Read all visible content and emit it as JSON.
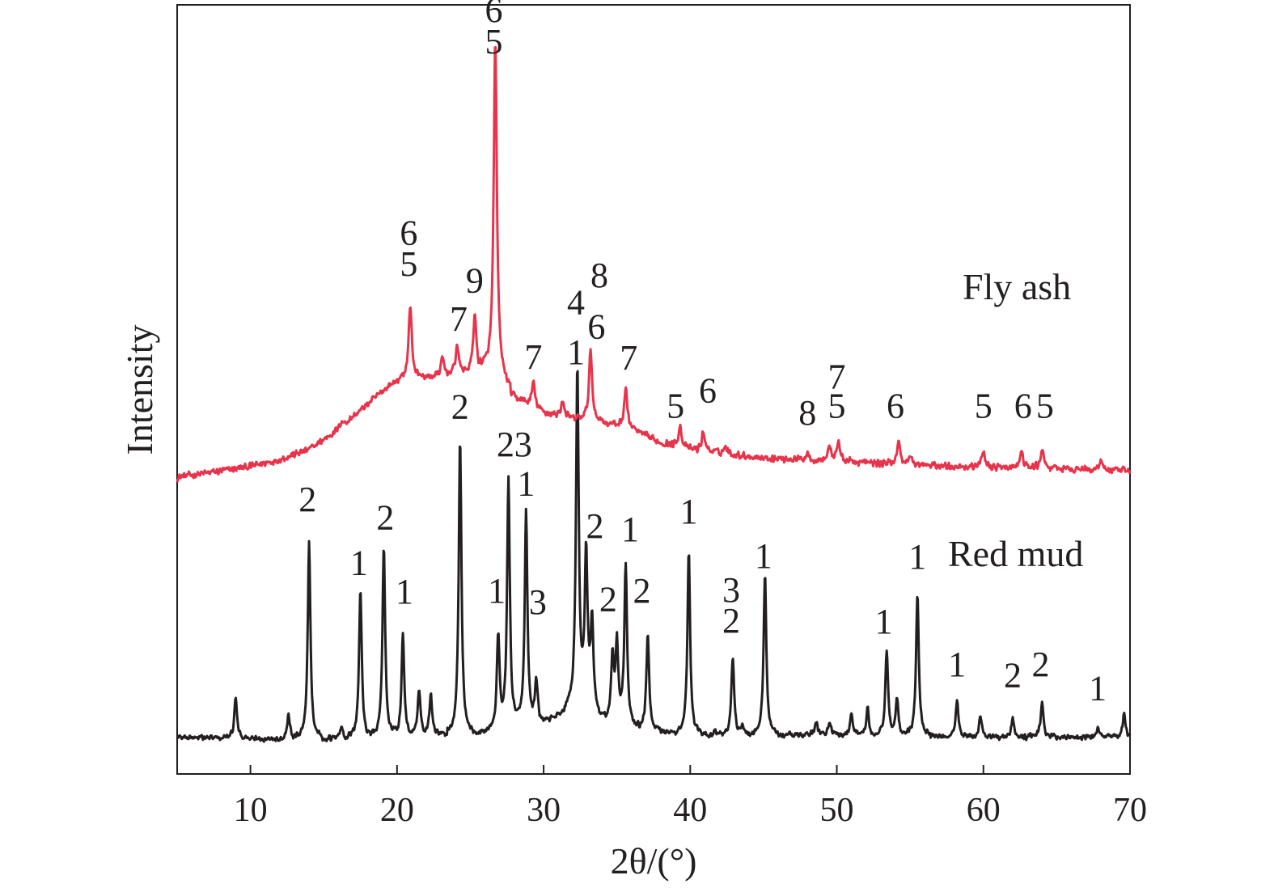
{
  "chart_data": {
    "type": "line",
    "xlabel": "2θ/(°)",
    "ylabel": "Intensity",
    "xlim": [
      5,
      70
    ],
    "ylim": [
      0,
      100
    ],
    "x_ticks": [
      "10",
      "20",
      "30",
      "40",
      "50",
      "60",
      "70"
    ],
    "y_ticks_shown": false,
    "grid": false,
    "colors": {
      "fly_ash": "#e8334a",
      "red_mud": "#231f20",
      "axis": "#231f20"
    },
    "baselines": {
      "fly_ash": [
        [
          5,
          38.6
        ],
        [
          8,
          39.4
        ],
        [
          10,
          40.0
        ],
        [
          12,
          40.9
        ],
        [
          14,
          42.2
        ],
        [
          16,
          44.8
        ],
        [
          18,
          48.1
        ],
        [
          19.5,
          50.6
        ],
        [
          20.5,
          51.4
        ],
        [
          22,
          51.6
        ],
        [
          24,
          52.0
        ],
        [
          26,
          52.4
        ],
        [
          27,
          51.6
        ],
        [
          28,
          49.1
        ],
        [
          30,
          47.0
        ],
        [
          32,
          46.2
        ],
        [
          34,
          45.8
        ],
        [
          36,
          44.8
        ],
        [
          38,
          43.1
        ],
        [
          40,
          42.2
        ],
        [
          45,
          41.1
        ],
        [
          50,
          40.7
        ],
        [
          55,
          40.2
        ],
        [
          60,
          39.9
        ],
        [
          65,
          39.7
        ],
        [
          70,
          39.4
        ]
      ],
      "red_mud": [
        [
          5,
          4.8
        ],
        [
          10,
          4.6
        ],
        [
          15,
          4.6
        ],
        [
          20,
          4.8
        ],
        [
          25,
          5.3
        ],
        [
          28,
          6.2
        ],
        [
          30,
          6.8
        ],
        [
          32,
          8.8
        ],
        [
          33,
          9.0
        ],
        [
          34,
          7.2
        ],
        [
          36,
          6.0
        ],
        [
          40,
          5.1
        ],
        [
          50,
          5.1
        ],
        [
          60,
          4.8
        ],
        [
          70,
          4.8
        ]
      ]
    },
    "series": [
      {
        "name": "Fly ash",
        "peaks": [
          {
            "x": 16.2,
            "y": 45.9
          },
          {
            "x": 20.9,
            "y": 60.8
          },
          {
            "x": 23.1,
            "y": 54.0
          },
          {
            "x": 24.1,
            "y": 55.8
          },
          {
            "x": 25.3,
            "y": 59.9
          },
          {
            "x": 26.7,
            "y": 95.1
          },
          {
            "x": 29.3,
            "y": 50.9
          },
          {
            "x": 31.3,
            "y": 48.6
          },
          {
            "x": 33.2,
            "y": 54.9
          },
          {
            "x": 35.6,
            "y": 50.1
          },
          {
            "x": 39.3,
            "y": 45.3
          },
          {
            "x": 40.9,
            "y": 44.5
          },
          {
            "x": 42.4,
            "y": 42.6
          },
          {
            "x": 48.0,
            "y": 41.8
          },
          {
            "x": 49.5,
            "y": 42.6
          },
          {
            "x": 50.1,
            "y": 43.2
          },
          {
            "x": 54.2,
            "y": 43.2
          },
          {
            "x": 55.0,
            "y": 41.4
          },
          {
            "x": 60.0,
            "y": 42.1
          },
          {
            "x": 62.6,
            "y": 41.9
          },
          {
            "x": 64.0,
            "y": 42.3
          },
          {
            "x": 68.0,
            "y": 40.9
          }
        ],
        "annotations": [
          {
            "text": "6",
            "x": 20.8,
            "y": 68.8
          },
          {
            "text": "5",
            "x": 20.8,
            "y": 64.8
          },
          {
            "text": "7",
            "x": 24.2,
            "y": 57.6
          },
          {
            "text": "9",
            "x": 25.3,
            "y": 62.6
          },
          {
            "text": "6",
            "x": 26.6,
            "y": 97.8
          },
          {
            "text": "5",
            "x": 26.6,
            "y": 93.7
          },
          {
            "text": "7",
            "x": 29.3,
            "y": 52.7
          },
          {
            "text": "4",
            "x": 32.2,
            "y": 59.8
          },
          {
            "text": "8",
            "x": 33.8,
            "y": 63.3
          },
          {
            "text": "1",
            "x": 32.2,
            "y": 53.3
          },
          {
            "text": "6",
            "x": 33.6,
            "y": 56.6
          },
          {
            "text": "7",
            "x": 35.8,
            "y": 52.6
          },
          {
            "text": "5",
            "x": 39.0,
            "y": 46.3
          },
          {
            "text": "6",
            "x": 41.2,
            "y": 48.3
          },
          {
            "text": "8",
            "x": 48.0,
            "y": 45.4
          },
          {
            "text": "7",
            "x": 50.0,
            "y": 50.1
          },
          {
            "text": "5",
            "x": 50.0,
            "y": 46.3
          },
          {
            "text": "6",
            "x": 54.0,
            "y": 46.3
          },
          {
            "text": "5",
            "x": 60.0,
            "y": 46.3
          },
          {
            "text": "6",
            "x": 62.7,
            "y": 46.3
          },
          {
            "text": "5",
            "x": 64.2,
            "y": 46.3
          }
        ]
      },
      {
        "name": "Red mud",
        "peaks": [
          {
            "x": 9.0,
            "y": 10.1
          },
          {
            "x": 12.6,
            "y": 7.9
          },
          {
            "x": 14.0,
            "y": 30.1
          },
          {
            "x": 16.2,
            "y": 6.1
          },
          {
            "x": 17.5,
            "y": 24.2
          },
          {
            "x": 19.1,
            "y": 29.7
          },
          {
            "x": 20.4,
            "y": 18.2
          },
          {
            "x": 21.5,
            "y": 11.1
          },
          {
            "x": 22.3,
            "y": 10.3
          },
          {
            "x": 24.3,
            "y": 43.6
          },
          {
            "x": 26.9,
            "y": 18.0
          },
          {
            "x": 27.6,
            "y": 38.3
          },
          {
            "x": 28.8,
            "y": 34.2
          },
          {
            "x": 29.5,
            "y": 12.0
          },
          {
            "x": 32.3,
            "y": 53.0
          },
          {
            "x": 32.9,
            "y": 28.3
          },
          {
            "x": 33.3,
            "y": 20.2
          },
          {
            "x": 34.7,
            "y": 15.5
          },
          {
            "x": 35.0,
            "y": 16.3
          },
          {
            "x": 35.6,
            "y": 27.3
          },
          {
            "x": 37.1,
            "y": 18.4
          },
          {
            "x": 39.9,
            "y": 28.9
          },
          {
            "x": 41.7,
            "y": 5.7
          },
          {
            "x": 42.9,
            "y": 15.2
          },
          {
            "x": 43.6,
            "y": 6.1
          },
          {
            "x": 45.1,
            "y": 25.9
          },
          {
            "x": 48.6,
            "y": 6.9
          },
          {
            "x": 49.5,
            "y": 6.8
          },
          {
            "x": 51.0,
            "y": 7.9
          },
          {
            "x": 52.1,
            "y": 8.6
          },
          {
            "x": 53.4,
            "y": 15.9
          },
          {
            "x": 54.1,
            "y": 9.8
          },
          {
            "x": 55.5,
            "y": 23.5
          },
          {
            "x": 58.2,
            "y": 9.5
          },
          {
            "x": 59.8,
            "y": 7.6
          },
          {
            "x": 62.0,
            "y": 7.1
          },
          {
            "x": 64.0,
            "y": 9.6
          },
          {
            "x": 67.8,
            "y": 5.9
          },
          {
            "x": 69.6,
            "y": 7.8
          }
        ],
        "annotations": [
          {
            "text": "2",
            "x": 13.9,
            "y": 34.2
          },
          {
            "text": "1",
            "x": 17.4,
            "y": 25.9
          },
          {
            "text": "2",
            "x": 19.2,
            "y": 31.8
          },
          {
            "text": "1",
            "x": 20.5,
            "y": 22.2
          },
          {
            "text": "2",
            "x": 24.3,
            "y": 46.2
          },
          {
            "text": "2",
            "x": 27.4,
            "y": 41.3
          },
          {
            "text": "3",
            "x": 28.6,
            "y": 41.3
          },
          {
            "text": "1",
            "x": 28.8,
            "y": 36.2
          },
          {
            "text": "1",
            "x": 26.8,
            "y": 22.3
          },
          {
            "text": "3",
            "x": 29.6,
            "y": 20.8
          },
          {
            "text": "2",
            "x": 33.5,
            "y": 30.7
          },
          {
            "text": "1",
            "x": 35.9,
            "y": 30.3
          },
          {
            "text": "2",
            "x": 34.4,
            "y": 21.2
          },
          {
            "text": "2",
            "x": 36.7,
            "y": 22.3
          },
          {
            "text": "1",
            "x": 39.9,
            "y": 32.6
          },
          {
            "text": "3",
            "x": 42.8,
            "y": 22.4
          },
          {
            "text": "2",
            "x": 42.8,
            "y": 18.4
          },
          {
            "text": "1",
            "x": 45.0,
            "y": 26.8
          },
          {
            "text": "1",
            "x": 53.2,
            "y": 18.3
          },
          {
            "text": "1",
            "x": 55.5,
            "y": 26.7
          },
          {
            "text": "1",
            "x": 58.2,
            "y": 12.7
          },
          {
            "text": "2",
            "x": 62.0,
            "y": 11.3
          },
          {
            "text": "2",
            "x": 63.9,
            "y": 12.7
          },
          {
            "text": "1",
            "x": 67.8,
            "y": 9.6
          }
        ]
      }
    ]
  }
}
